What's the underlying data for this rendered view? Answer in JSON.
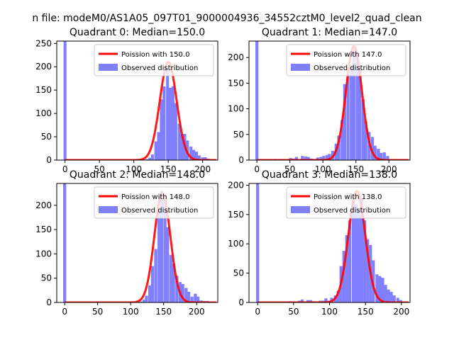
{
  "figure_title": "n file: modeM0/AS1A05_097T01_9000004936_34552cztM0_level2_quad_clean",
  "chart_data": [
    {
      "type": "bar",
      "title": "Quadrant 0: Median=150.0",
      "median": 150.0,
      "xlim": [
        -12,
        222
      ],
      "ylim": [
        0,
        255
      ],
      "xticks": [
        0,
        50,
        100,
        150,
        200
      ],
      "yticks": [
        0,
        50,
        100,
        150,
        200,
        250
      ],
      "legend": {
        "position": "top-right",
        "line_label": "Poission with 150.0",
        "bar_label": "Observed distribution"
      },
      "line_color": "#ff0000",
      "bar_color": "#8080ff",
      "bin_width": 4.25,
      "outlier_bin": {
        "x": 0,
        "count": 255
      },
      "histogram": [
        [
          102,
          1
        ],
        [
          106,
          0
        ],
        [
          111,
          1
        ],
        [
          115,
          1
        ],
        [
          119,
          2
        ],
        [
          123,
          5
        ],
        [
          127,
          12
        ],
        [
          132,
          40
        ],
        [
          136,
          60
        ],
        [
          140,
          130
        ],
        [
          144,
          158
        ],
        [
          149,
          196
        ],
        [
          153,
          155
        ],
        [
          157,
          158
        ],
        [
          161,
          122
        ],
        [
          166,
          78
        ],
        [
          170,
          56
        ],
        [
          174,
          56
        ],
        [
          178,
          42
        ],
        [
          183,
          29
        ],
        [
          187,
          22
        ],
        [
          191,
          18
        ],
        [
          195,
          10
        ],
        [
          200,
          6
        ],
        [
          204,
          6
        ],
        [
          208,
          3
        ]
      ],
      "poisson_mean": 150.0,
      "poisson_peak": 210
    },
    {
      "type": "bar",
      "title": "Quadrant 1: Median=147.0",
      "median": 147.0,
      "xlim": [
        -12,
        232
      ],
      "ylim": [
        0,
        232
      ],
      "xticks": [
        0,
        50,
        100,
        150,
        200
      ],
      "yticks": [
        0,
        50,
        100,
        150,
        200
      ],
      "legend": {
        "position": "top-right",
        "line_label": "Poission with 147.0",
        "bar_label": "Observed distribution"
      },
      "line_color": "#ff0000",
      "bar_color": "#8080ff",
      "bin_width": 4.6,
      "outlier_bin": {
        "x": 0,
        "count": 232
      },
      "histogram": [
        [
          28,
          2
        ],
        [
          37,
          2
        ],
        [
          51,
          4
        ],
        [
          55,
          3
        ],
        [
          60,
          6
        ],
        [
          69,
          8
        ],
        [
          74,
          7
        ],
        [
          78,
          6
        ],
        [
          83,
          3
        ],
        [
          87,
          2
        ],
        [
          92,
          5
        ],
        [
          97,
          6
        ],
        [
          101,
          8
        ],
        [
          106,
          10
        ],
        [
          110,
          12
        ],
        [
          115,
          18
        ],
        [
          120,
          32
        ],
        [
          124,
          48
        ],
        [
          129,
          78
        ],
        [
          133,
          148
        ],
        [
          138,
          168
        ],
        [
          143,
          185
        ],
        [
          147,
          220
        ],
        [
          152,
          205
        ],
        [
          156,
          178
        ],
        [
          161,
          118
        ],
        [
          165,
          75
        ],
        [
          170,
          55
        ],
        [
          175,
          45
        ],
        [
          179,
          28
        ],
        [
          184,
          22
        ],
        [
          188,
          14
        ],
        [
          193,
          15
        ],
        [
          198,
          8
        ],
        [
          202,
          2
        ],
        [
          207,
          2
        ]
      ],
      "poisson_mean": 147.0,
      "poisson_peak": 222
    },
    {
      "type": "bar",
      "title": "Quadrant 2: Median=148.0",
      "median": 148.0,
      "xlim": [
        -12,
        232
      ],
      "ylim": [
        0,
        245
      ],
      "xticks": [
        0,
        50,
        100,
        150,
        200
      ],
      "yticks": [
        0,
        50,
        100,
        150,
        200
      ],
      "legend": {
        "position": "top-right",
        "line_label": "Poission with 148.0",
        "bar_label": "Observed distribution"
      },
      "line_color": "#ff0000",
      "bar_color": "#8080ff",
      "bin_width": 4.6,
      "outlier_bin": {
        "x": 0,
        "count": 245
      },
      "histogram": [
        [
          51,
          1
        ],
        [
          73,
          1
        ],
        [
          92,
          1
        ],
        [
          115,
          2
        ],
        [
          120,
          6
        ],
        [
          124,
          14
        ],
        [
          129,
          35
        ],
        [
          133,
          75
        ],
        [
          138,
          110
        ],
        [
          143,
          195
        ],
        [
          147,
          230
        ],
        [
          152,
          210
        ],
        [
          156,
          155
        ],
        [
          161,
          98
        ],
        [
          165,
          80
        ],
        [
          170,
          55
        ],
        [
          175,
          42
        ],
        [
          179,
          38
        ],
        [
          184,
          30
        ],
        [
          188,
          22
        ],
        [
          193,
          12
        ],
        [
          198,
          18
        ],
        [
          202,
          12
        ],
        [
          207,
          4
        ],
        [
          211,
          3
        ],
        [
          216,
          3
        ]
      ],
      "poisson_mean": 148.0,
      "poisson_peak": 225
    },
    {
      "type": "bar",
      "title": "Quadrant 3: Median=138.0",
      "median": 138.0,
      "xlim": [
        -12,
        212
      ],
      "ylim": [
        0,
        203
      ],
      "xticks": [
        0,
        50,
        100,
        150,
        200
      ],
      "yticks": [
        0,
        50,
        100,
        150,
        200
      ],
      "legend": {
        "position": "top-right",
        "line_label": "Poission with 138.0",
        "bar_label": "Observed distribution"
      },
      "line_color": "#ff0000",
      "bar_color": "#8080ff",
      "bin_width": 4.15,
      "outlier_bin": {
        "x": 0,
        "count": 203
      },
      "histogram": [
        [
          45,
          2
        ],
        [
          58,
          3
        ],
        [
          62,
          5
        ],
        [
          70,
          4
        ],
        [
          74,
          4
        ],
        [
          79,
          2
        ],
        [
          87,
          3
        ],
        [
          91,
          3
        ],
        [
          95,
          7
        ],
        [
          99,
          3
        ],
        [
          103,
          8
        ],
        [
          108,
          12
        ],
        [
          112,
          20
        ],
        [
          116,
          62
        ],
        [
          120,
          88
        ],
        [
          124,
          115
        ],
        [
          128,
          140
        ],
        [
          133,
          175
        ],
        [
          137,
          168
        ],
        [
          141,
          160
        ],
        [
          145,
          178
        ],
        [
          149,
          140
        ],
        [
          153,
          108
        ],
        [
          157,
          98
        ],
        [
          161,
          72
        ],
        [
          166,
          48
        ],
        [
          170,
          45
        ],
        [
          174,
          42
        ],
        [
          178,
          30
        ],
        [
          182,
          22
        ],
        [
          186,
          18
        ],
        [
          190,
          12
        ],
        [
          195,
          8
        ],
        [
          199,
          4
        ]
      ],
      "poisson_mean": 138.0,
      "poisson_peak": 190
    }
  ]
}
